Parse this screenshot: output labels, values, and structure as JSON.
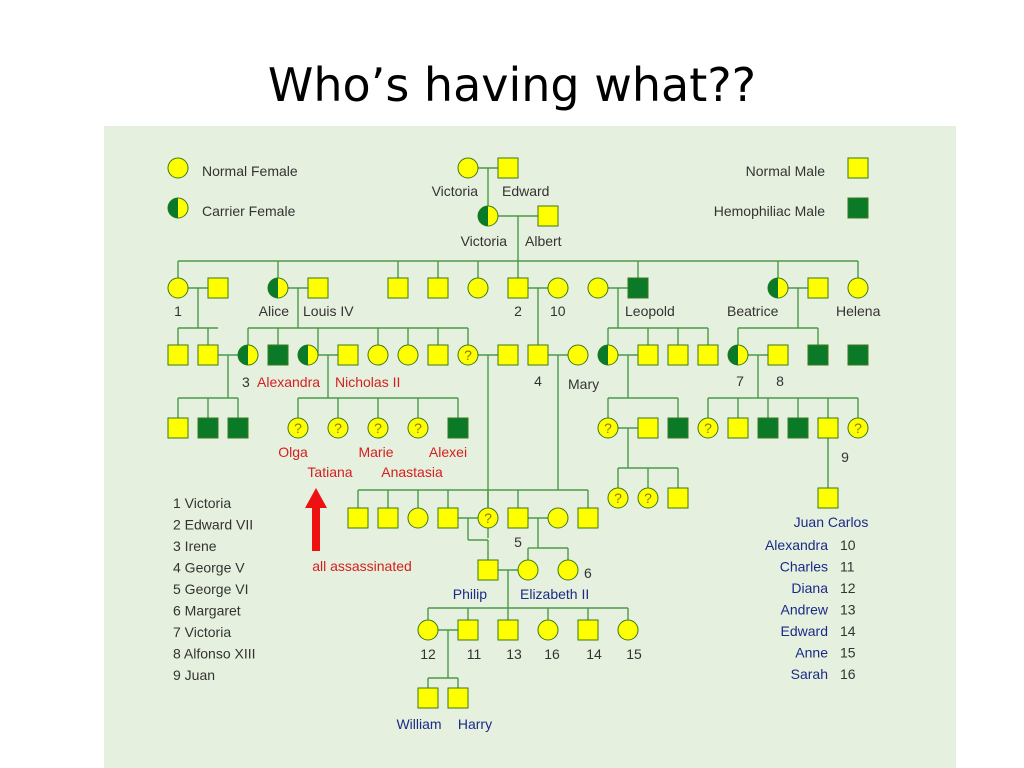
{
  "slide": {
    "title": "Who’s having what??"
  },
  "colors": {
    "background": "#e6f0de",
    "line": "#4a9a4a",
    "normal": "#ffff00",
    "hemophiliac": "#0a7a28",
    "symbol_stroke": "#3a7a1a",
    "text": "#333333",
    "blue_text": "#1a2a88",
    "red_text": "#d42020"
  },
  "legend": {
    "normal_female": "Normal Female",
    "carrier_female": "Carrier Female",
    "normal_male": "Normal Male",
    "hemophiliac_male": "Hemophiliac Male"
  },
  "names": {
    "victoria_top": "Victoria",
    "edward": "Edward",
    "victoria_2": "Victoria",
    "albert": "Albert",
    "num_1": "1",
    "alice": "Alice",
    "louis": "Louis IV",
    "num_2": "2",
    "num_10": "10",
    "leopold": "Leopold",
    "beatrice": "Beatrice",
    "helena": "Helena",
    "num_3": "3",
    "alexandra": "Alexandra",
    "nicholas": "Nicholas II",
    "num_4": "4",
    "mary": "Mary",
    "num_7": "7",
    "num_8": "8",
    "olga": "Olga",
    "marie": "Marie",
    "alexei": "Alexei",
    "tatiana": "Tatiana",
    "anastasia": "Anastasia",
    "num_9": "9",
    "juan_carlos": "Juan Carlos",
    "all_assassinated": "all assassinated",
    "num_5": "5",
    "num_6": "6",
    "philip": "Philip",
    "elizabeth": "Elizabeth II",
    "c12": "12",
    "c11": "11",
    "c13": "13",
    "c16": "16",
    "c14": "14",
    "c15": "15",
    "william": "William",
    "harry": "Harry"
  },
  "key_left": [
    "1  Victoria",
    "2  Edward VII",
    "3  Irene",
    "4  George V",
    "5  George VI",
    "6  Margaret",
    "7  Victoria",
    "8  Alfonso XIII",
    "9  Juan"
  ],
  "key_right": [
    {
      "name": "Alexandra",
      "num": "10"
    },
    {
      "name": "Charles",
      "num": "11"
    },
    {
      "name": "Diana",
      "num": "12"
    },
    {
      "name": "Andrew",
      "num": "13"
    },
    {
      "name": "Edward",
      "num": "14"
    },
    {
      "name": "Anne",
      "num": "15"
    },
    {
      "name": "Sarah",
      "num": "16"
    }
  ],
  "unknown_mark": "?"
}
